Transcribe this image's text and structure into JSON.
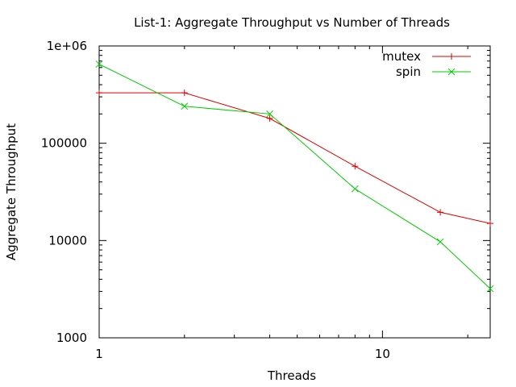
{
  "chart_data": {
    "type": "line",
    "title": "List-1: Aggregate Throughput vs Number of Threads",
    "xlabel": "Threads",
    "ylabel": "Aggregate Throughput",
    "x_scale": "log",
    "y_scale": "log",
    "xlim": [
      1,
      24
    ],
    "ylim": [
      1000,
      1000000
    ],
    "x_ticks": [
      {
        "value": 1,
        "label": "1"
      },
      {
        "value": 10,
        "label": "10"
      }
    ],
    "y_ticks": [
      {
        "value": 1000,
        "label": "1000"
      },
      {
        "value": 10000,
        "label": "10000"
      },
      {
        "value": 100000,
        "label": "100000"
      },
      {
        "value": 1000000,
        "label": "1e+06"
      }
    ],
    "grid": false,
    "legend_position": "top-right",
    "series": [
      {
        "name": "mutex",
        "color": "#e00000",
        "marker": "plus",
        "x": [
          1,
          2,
          4,
          8,
          16,
          24
        ],
        "y": [
          330000,
          330000,
          180000,
          58000,
          19500,
          15000
        ]
      },
      {
        "name": "spin",
        "color": "#00cc00",
        "marker": "cross",
        "x": [
          1,
          2,
          4,
          8,
          16,
          24
        ],
        "y": [
          650000,
          240000,
          200000,
          34000,
          9700,
          3200
        ]
      }
    ]
  }
}
